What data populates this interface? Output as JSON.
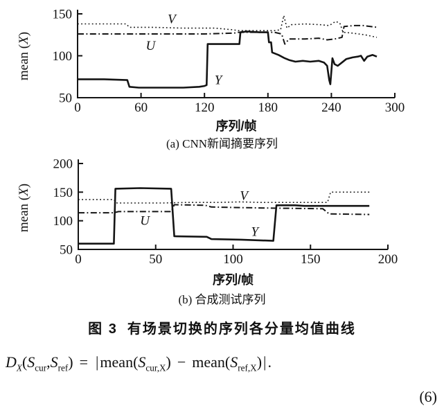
{
  "figure": {
    "ylabel_pre": "mean (",
    "ylabel_var": "X",
    "ylabel_post": ")",
    "xlabel": "序列/帧",
    "fig_label": "图 3",
    "fig_title": "有场景切换的序列各分量均值曲线",
    "equation_number": "(6)",
    "ink_color": "#141414",
    "background_color": "#ffffff"
  },
  "chart_data": [
    {
      "type": "line",
      "title": "(a) CNN新闻摘要序列",
      "xlabel": "序列/帧",
      "ylabel": "mean (X)",
      "xlim": [
        0,
        300
      ],
      "ylim": [
        50,
        150
      ],
      "x_ticks": [
        0,
        60,
        120,
        180,
        240,
        300
      ],
      "y_ticks": [
        150,
        100,
        50
      ],
      "grid": false,
      "legend_position": "inline-labels",
      "series": [
        {
          "name": "V",
          "style": "dotted",
          "points": [
            [
              0,
              138
            ],
            [
              46,
              138
            ],
            [
              49,
              134
            ],
            [
              70,
              134
            ],
            [
              100,
              133
            ],
            [
              130,
              133
            ],
            [
              147,
              131
            ],
            [
              152,
              130
            ],
            [
              186,
              130
            ],
            [
              192,
              131
            ],
            [
              195,
              148
            ],
            [
              198,
              133
            ],
            [
              202,
              137
            ],
            [
              215,
              138
            ],
            [
              230,
              137
            ],
            [
              238,
              136
            ],
            [
              244,
              141
            ],
            [
              248,
              139
            ],
            [
              251,
              128
            ],
            [
              260,
              127
            ],
            [
              272,
              125
            ],
            [
              283,
              122
            ]
          ]
        },
        {
          "name": "U",
          "style": "dashdot",
          "points": [
            [
              0,
              126
            ],
            [
              60,
              126
            ],
            [
              120,
              126
            ],
            [
              148,
              127
            ],
            [
              152,
              128
            ],
            [
              186,
              128
            ],
            [
              193,
              126
            ],
            [
              196,
              114
            ],
            [
              200,
              120
            ],
            [
              215,
              120
            ],
            [
              228,
              121
            ],
            [
              236,
              119
            ],
            [
              243,
              120
            ],
            [
              250,
              122
            ],
            [
              252,
              135
            ],
            [
              262,
              136
            ],
            [
              270,
              136
            ],
            [
              277,
              135
            ],
            [
              283,
              134
            ]
          ]
        },
        {
          "name": "Y",
          "style": "solid",
          "points": [
            [
              0,
              72
            ],
            [
              25,
              72
            ],
            [
              47,
              71
            ],
            [
              49,
              63
            ],
            [
              58,
              62
            ],
            [
              80,
              62
            ],
            [
              100,
              62
            ],
            [
              115,
              63
            ],
            [
              120,
              64
            ],
            [
              122,
              65
            ],
            [
              123,
              114
            ],
            [
              140,
              114
            ],
            [
              153,
              114
            ],
            [
              154,
              128
            ],
            [
              160,
              129
            ],
            [
              172,
              128
            ],
            [
              180,
              128
            ],
            [
              181,
              116
            ],
            [
              183,
              116
            ],
            [
              184,
              104
            ],
            [
              190,
              101
            ],
            [
              196,
              97
            ],
            [
              200,
              95
            ],
            [
              206,
              93
            ],
            [
              213,
              94
            ],
            [
              220,
              93
            ],
            [
              228,
              94
            ],
            [
              233,
              92
            ],
            [
              236,
              88
            ],
            [
              238,
              71
            ],
            [
              239,
              66
            ],
            [
              241,
              97
            ],
            [
              243,
              90
            ],
            [
              246,
              88
            ],
            [
              250,
              92
            ],
            [
              254,
              96
            ],
            [
              260,
              98
            ],
            [
              265,
              99
            ],
            [
              268,
              100
            ],
            [
              271,
              94
            ],
            [
              274,
              99
            ],
            [
              279,
              101
            ],
            [
              283,
              99
            ]
          ]
        }
      ],
      "labels": [
        {
          "text": "V",
          "x": 89,
          "y": 144
        },
        {
          "text": "U",
          "x": 69,
          "y": 112
        },
        {
          "text": "Y",
          "x": 133,
          "y": 71
        }
      ]
    },
    {
      "type": "line",
      "title": "(b) 合成测试序列",
      "xlabel": "序列/帧",
      "ylabel": "mean (X)",
      "xlim": [
        0,
        200
      ],
      "ylim": [
        50,
        200
      ],
      "x_ticks": [
        0,
        50,
        100,
        150,
        200
      ],
      "y_ticks": [
        200,
        150,
        100,
        50
      ],
      "grid": false,
      "legend_position": "inline-labels",
      "series": [
        {
          "name": "V",
          "style": "dotted",
          "points": [
            [
              0,
              137
            ],
            [
              23,
              137
            ],
            [
              25,
              131
            ],
            [
              55,
              131
            ],
            [
              70,
              132
            ],
            [
              90,
              132
            ],
            [
              105,
              133
            ],
            [
              118,
              132
            ],
            [
              140,
              132
            ],
            [
              161,
              132
            ],
            [
              163,
              150
            ],
            [
              188,
              150
            ]
          ]
        },
        {
          "name": "U",
          "style": "dashdot",
          "points": [
            [
              0,
              114
            ],
            [
              23,
              114
            ],
            [
              26,
              116
            ],
            [
              60,
              116
            ],
            [
              62,
              128
            ],
            [
              82,
              127
            ],
            [
              86,
              124
            ],
            [
              105,
              123
            ],
            [
              130,
              122
            ],
            [
              158,
              121
            ],
            [
              162,
              112
            ],
            [
              188,
              111
            ]
          ]
        },
        {
          "name": "Y",
          "style": "solid",
          "points": [
            [
              0,
              60
            ],
            [
              23,
              60
            ],
            [
              24,
              156
            ],
            [
              40,
              157
            ],
            [
              60,
              156
            ],
            [
              62,
              73
            ],
            [
              83,
              72
            ],
            [
              86,
              68
            ],
            [
              105,
              67
            ],
            [
              126,
              65
            ],
            [
              128,
              127
            ],
            [
              140,
              127
            ],
            [
              146,
              126
            ],
            [
              188,
              126
            ]
          ]
        }
      ],
      "labels": [
        {
          "text": "V",
          "x": 107,
          "y": 144
        },
        {
          "text": "U",
          "x": 43,
          "y": 100
        },
        {
          "text": "Y",
          "x": 114,
          "y": 81
        }
      ]
    }
  ],
  "formula": {
    "D": "D",
    "D_sub": "X",
    "open_paren": "(",
    "S1": "S",
    "S1_sub": "cur",
    "comma": ",",
    "S2": "S",
    "S2_sub": "ref",
    "close_paren": ")",
    "equals": "=",
    "abs_left": "|",
    "mean1": "mean(",
    "S3": "S",
    "S3_sub": "cur,X",
    "close1": ")",
    "minus": "−",
    "mean2": "mean(",
    "S4": "S",
    "S4_sub": "ref,X",
    "close2": ")",
    "abs_right": "|",
    "period": "."
  }
}
